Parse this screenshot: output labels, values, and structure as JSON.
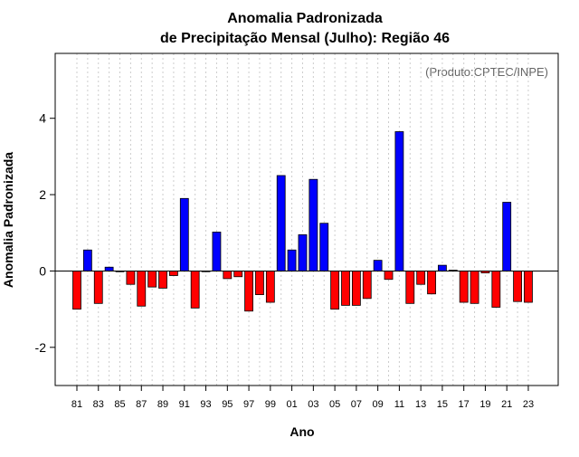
{
  "chart_data": {
    "type": "bar",
    "title": "Anomalia Padronizada",
    "subtitle": "de Precipitação Mensal (Julho): Região 46",
    "xlabel": "Ano",
    "ylabel": "Anomalia Padronizada",
    "annotation": "(Produto:CPTEC/INPE)",
    "ylim": [
      -3,
      5.7
    ],
    "yticks": [
      -2,
      0,
      2,
      4
    ],
    "years": [
      1981,
      1982,
      1983,
      1984,
      1985,
      1986,
      1987,
      1988,
      1989,
      1990,
      1991,
      1992,
      1993,
      1994,
      1995,
      1996,
      1997,
      1998,
      1999,
      2000,
      2001,
      2002,
      2003,
      2004,
      2005,
      2006,
      2007,
      2008,
      2009,
      2010,
      2011,
      2012,
      2013,
      2014,
      2015,
      2016,
      2017,
      2018,
      2019,
      2020,
      2021,
      2022,
      2023
    ],
    "xtick_labels": [
      "81",
      "83",
      "85",
      "87",
      "89",
      "91",
      "93",
      "95",
      "97",
      "99",
      "01",
      "03",
      "05",
      "07",
      "09",
      "11",
      "13",
      "15",
      "17",
      "19",
      "21",
      "23"
    ],
    "values": [
      -1.0,
      0.55,
      -0.85,
      0.1,
      -0.02,
      -0.35,
      -0.92,
      -0.42,
      -0.45,
      -0.12,
      1.9,
      -0.97,
      0.0,
      1.02,
      -0.2,
      -0.15,
      -1.05,
      -0.62,
      -0.82,
      2.5,
      0.55,
      0.95,
      2.4,
      1.25,
      -1.0,
      -0.9,
      -0.9,
      -0.72,
      0.28,
      -0.22,
      3.65,
      -0.85,
      -0.35,
      -0.6,
      0.15,
      0.02,
      -0.82,
      -0.85,
      -0.05,
      -0.95,
      1.8,
      -0.8,
      -0.82
    ],
    "positive_color": "#0000ff",
    "negative_color": "#ff0000",
    "gridlines": "vertical dotted per year",
    "zero_line": true
  }
}
